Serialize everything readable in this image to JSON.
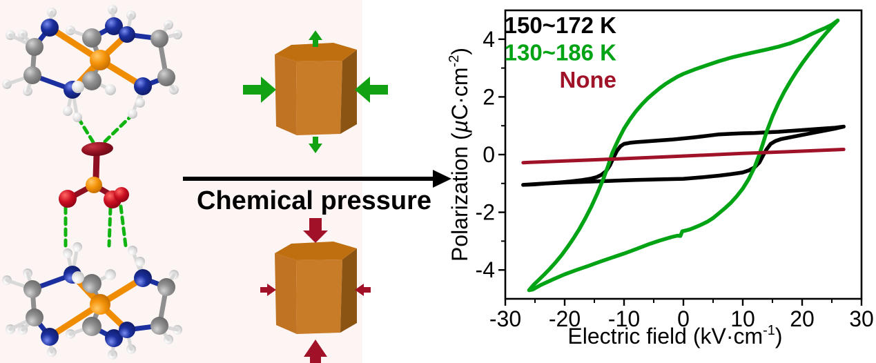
{
  "middle": {
    "arrow_label": "Chemical pressure",
    "arrow_color": "#000000"
  },
  "molecule": {
    "atom_colors": {
      "nitrogen": "#1b2f9e",
      "carbon": "#8f8f8f",
      "hydrogen": "#e8e8e8",
      "metal": "#f5940a",
      "oxygen": "#cc1022",
      "red_stick": "#8e0f20",
      "hydrogen_bond": "#10b410"
    }
  },
  "prisms": {
    "face_top": "#bf6f10",
    "face_left": "#c07423",
    "face_front": "#c87c28",
    "face_right": "#8c5413",
    "expand_arrow_color": "#12a112",
    "compress_arrow_color": "#a11228"
  },
  "chart_data": {
    "type": "line",
    "title": "",
    "xlabel": "Electric field (kV·cm⁻¹)",
    "ylabel": "Polarization (µC·cm⁻²)",
    "xlim": [
      -30,
      30
    ],
    "ylim": [
      -5,
      5
    ],
    "x_major_ticks": [
      -30,
      -20,
      -10,
      0,
      10,
      20,
      30
    ],
    "x_minor_ticks": [
      -25,
      -15,
      -5,
      5,
      15,
      25
    ],
    "y_major_ticks": [
      -4,
      -2,
      0,
      2,
      4
    ],
    "y_minor_ticks": [
      -3,
      -1,
      1,
      3
    ],
    "grid": false,
    "legend": {
      "position": "top-left",
      "entries": [
        {
          "label": "150~172 K",
          "color": "#000000"
        },
        {
          "label": "130~186 K",
          "color": "#00a314"
        },
        {
          "label": "None",
          "color": "#a01228"
        }
      ]
    },
    "labels": {
      "xlabel_main": "Electric field (kV·cm",
      "xlabel_sup": "-1",
      "xlabel_end": ")",
      "ylabel_pre": "Polarization (",
      "ylabel_mu": "µ",
      "ylabel_main": "C·cm",
      "ylabel_sup": "-2",
      "ylabel_end": ")"
    },
    "series": [
      {
        "name": "150~172 K",
        "color": "#000000",
        "width": 5.5,
        "points": [
          [
            -27,
            -1.05
          ],
          [
            -24,
            -1.01
          ],
          [
            -20,
            -0.97
          ],
          [
            -16,
            -0.94
          ],
          [
            -12,
            -0.91
          ],
          [
            -8,
            -0.88
          ],
          [
            -4,
            -0.86
          ],
          [
            0,
            -0.84
          ],
          [
            3,
            -0.79
          ],
          [
            6,
            -0.73
          ],
          [
            8,
            -0.68
          ],
          [
            10,
            -0.62
          ],
          [
            11,
            -0.55
          ],
          [
            12,
            -0.44
          ],
          [
            12.8,
            -0.27
          ],
          [
            13.4,
            -0.04
          ],
          [
            14,
            0.18
          ],
          [
            14.7,
            0.37
          ],
          [
            15.5,
            0.47
          ],
          [
            16.5,
            0.54
          ],
          [
            18,
            0.6
          ],
          [
            20,
            0.68
          ],
          [
            22,
            0.76
          ],
          [
            24,
            0.84
          ],
          [
            25.5,
            0.9
          ],
          [
            27,
            0.97
          ],
          [
            25.5,
            0.93
          ],
          [
            24,
            0.91
          ],
          [
            22,
            0.88
          ],
          [
            20,
            0.85
          ],
          [
            18,
            0.82
          ],
          [
            16,
            0.79
          ],
          [
            14,
            0.77
          ],
          [
            12,
            0.75
          ],
          [
            10,
            0.74
          ],
          [
            8,
            0.72
          ],
          [
            6,
            0.7
          ],
          [
            4,
            0.65
          ],
          [
            2,
            0.6
          ],
          [
            0,
            0.56
          ],
          [
            -2,
            0.52
          ],
          [
            -4,
            0.49
          ],
          [
            -6,
            0.46
          ],
          [
            -8,
            0.43
          ],
          [
            -9,
            0.41
          ],
          [
            -10,
            0.37
          ],
          [
            -10.6,
            0.29
          ],
          [
            -11.2,
            0.13
          ],
          [
            -11.8,
            -0.12
          ],
          [
            -12.4,
            -0.38
          ],
          [
            -13,
            -0.57
          ],
          [
            -13.8,
            -0.7
          ],
          [
            -14.6,
            -0.78
          ],
          [
            -15.5,
            -0.83
          ],
          [
            -17,
            -0.88
          ],
          [
            -19,
            -0.93
          ],
          [
            -21,
            -0.97
          ],
          [
            -23,
            -1.0
          ],
          [
            -25,
            -1.03
          ],
          [
            -27,
            -1.05
          ]
        ]
      },
      {
        "name": "130~186 K",
        "color": "#00a314",
        "width": 5.5,
        "points": [
          [
            -26,
            -4.7
          ],
          [
            -25.4,
            -4.68
          ],
          [
            -24,
            -4.52
          ],
          [
            -22,
            -4.33
          ],
          [
            -20,
            -4.15
          ],
          [
            -18,
            -4.0
          ],
          [
            -16,
            -3.86
          ],
          [
            -14,
            -3.71
          ],
          [
            -12,
            -3.57
          ],
          [
            -10,
            -3.43
          ],
          [
            -8,
            -3.28
          ],
          [
            -6,
            -3.12
          ],
          [
            -4,
            -2.98
          ],
          [
            -2,
            -2.86
          ],
          [
            -1,
            -2.81
          ],
          [
            -0.5,
            -2.82
          ],
          [
            -0.2,
            -2.66
          ],
          [
            1,
            -2.6
          ],
          [
            2,
            -2.52
          ],
          [
            3,
            -2.43
          ],
          [
            4,
            -2.33
          ],
          [
            5,
            -2.2
          ],
          [
            6,
            -2.03
          ],
          [
            7,
            -1.86
          ],
          [
            8,
            -1.67
          ],
          [
            9,
            -1.44
          ],
          [
            10,
            -1.18
          ],
          [
            11,
            -0.85
          ],
          [
            12,
            -0.43
          ],
          [
            12.7,
            -0.05
          ],
          [
            13.4,
            0.38
          ],
          [
            14,
            0.78
          ],
          [
            15,
            1.32
          ],
          [
            16,
            1.78
          ],
          [
            17,
            2.18
          ],
          [
            18,
            2.53
          ],
          [
            19,
            2.86
          ],
          [
            20,
            3.16
          ],
          [
            21,
            3.44
          ],
          [
            22,
            3.7
          ],
          [
            23,
            3.96
          ],
          [
            24,
            4.2
          ],
          [
            25,
            4.44
          ],
          [
            26,
            4.65
          ],
          [
            25,
            4.5
          ],
          [
            24,
            4.4
          ],
          [
            23,
            4.31
          ],
          [
            22,
            4.22
          ],
          [
            21,
            4.12
          ],
          [
            20,
            4.02
          ],
          [
            18,
            3.86
          ],
          [
            16,
            3.74
          ],
          [
            14,
            3.64
          ],
          [
            12,
            3.55
          ],
          [
            10,
            3.46
          ],
          [
            8,
            3.36
          ],
          [
            6,
            3.24
          ],
          [
            4,
            3.1
          ],
          [
            2,
            2.96
          ],
          [
            0,
            2.8
          ],
          [
            -1,
            2.7
          ],
          [
            -2,
            2.58
          ],
          [
            -3,
            2.45
          ],
          [
            -4,
            2.3
          ],
          [
            -5,
            2.13
          ],
          [
            -6,
            1.95
          ],
          [
            -7,
            1.74
          ],
          [
            -8,
            1.5
          ],
          [
            -9,
            1.22
          ],
          [
            -10,
            0.9
          ],
          [
            -11,
            0.5
          ],
          [
            -12,
            0.05
          ],
          [
            -12.7,
            -0.4
          ],
          [
            -13.5,
            -0.85
          ],
          [
            -14.5,
            -1.35
          ],
          [
            -15.5,
            -1.8
          ],
          [
            -16.5,
            -2.2
          ],
          [
            -17.5,
            -2.57
          ],
          [
            -18.5,
            -2.9
          ],
          [
            -19.5,
            -3.2
          ],
          [
            -20.5,
            -3.48
          ],
          [
            -21.5,
            -3.73
          ],
          [
            -22.5,
            -3.96
          ],
          [
            -23.5,
            -4.17
          ],
          [
            -24.5,
            -4.37
          ],
          [
            -25.3,
            -4.53
          ],
          [
            -26,
            -4.7
          ]
        ]
      },
      {
        "name": "None",
        "color": "#a01228",
        "width": 5,
        "points": [
          [
            -27,
            -0.28
          ],
          [
            -20,
            -0.22
          ],
          [
            -10,
            -0.14
          ],
          [
            0,
            -0.05
          ],
          [
            10,
            0.04
          ],
          [
            20,
            0.12
          ],
          [
            27,
            0.18
          ]
        ]
      }
    ]
  }
}
